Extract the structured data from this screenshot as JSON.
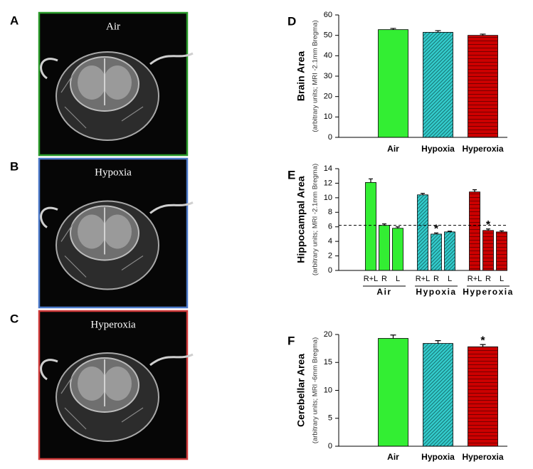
{
  "images": [
    {
      "letter": "A",
      "label": "Air",
      "border_color": "#2a9a2a"
    },
    {
      "letter": "B",
      "label": "Hypoxia",
      "border_color": "#4a78c8"
    },
    {
      "letter": "C",
      "label": "Hyperoxia",
      "border_color": "#d03a3a"
    }
  ],
  "chart_data": [
    {
      "type": "bar",
      "letter": "D",
      "ylabel": "Brain Area",
      "ylabel_note": "(arbitrary units; MRI -2.1mm Bregma)",
      "categories": [
        "Air",
        "Hypoxia",
        "Hyperoxia"
      ],
      "values": [
        52.8,
        51.5,
        50.0
      ],
      "errors": [
        0.6,
        0.8,
        0.6
      ],
      "colors": [
        "#33ee33",
        "#33cccc",
        "#cc0000"
      ],
      "patterns": [
        "solid",
        "diagonal",
        "horizontal"
      ],
      "ylim": [
        0,
        60
      ],
      "yticks": [
        0,
        10,
        20,
        30,
        40,
        50,
        60
      ]
    },
    {
      "type": "grouped_bar",
      "letter": "E",
      "ylabel": "Hippocampal Area",
      "ylabel_note": "(arbitrary units; MRI -2.1mm Bregma)",
      "categories": [
        "R+L",
        "R",
        "L"
      ],
      "series": [
        {
          "name": "Air",
          "color": "#33ee33",
          "pattern": "solid",
          "values": [
            12.1,
            6.2,
            5.8
          ],
          "errors": [
            0.5,
            0.2,
            0.2
          ],
          "annotations": [
            null,
            null,
            null
          ]
        },
        {
          "name": "Hypoxia",
          "color": "#33cccc",
          "pattern": "diagonal",
          "values": [
            10.4,
            5.0,
            5.3
          ],
          "errors": [
            0.2,
            0.15,
            0.1
          ],
          "annotations": [
            null,
            "*",
            null
          ]
        },
        {
          "name": "Hyperoxia",
          "color": "#cc0000",
          "pattern": "horizontal",
          "values": [
            10.8,
            5.5,
            5.3
          ],
          "errors": [
            0.3,
            0.2,
            0.15
          ],
          "annotations": [
            null,
            "*",
            null
          ]
        }
      ],
      "reference_line": 6.2,
      "ylim": [
        0,
        14
      ],
      "yticks": [
        0,
        2,
        4,
        6,
        8,
        10,
        12,
        14
      ]
    },
    {
      "type": "bar",
      "letter": "F",
      "ylabel": "Cerebellar Area",
      "ylabel_note": "(arbitrary units; MRI -6mm Bregma)",
      "categories": [
        "Air",
        "Hypoxia",
        "Hyperoxia"
      ],
      "values": [
        19.3,
        18.4,
        17.8
      ],
      "errors": [
        0.6,
        0.5,
        0.4
      ],
      "annotations": [
        null,
        null,
        "*"
      ],
      "colors": [
        "#33ee33",
        "#33cccc",
        "#cc0000"
      ],
      "patterns": [
        "solid",
        "diagonal",
        "horizontal"
      ],
      "ylim": [
        0,
        20
      ],
      "yticks": [
        0,
        5,
        10,
        15,
        20
      ]
    }
  ]
}
